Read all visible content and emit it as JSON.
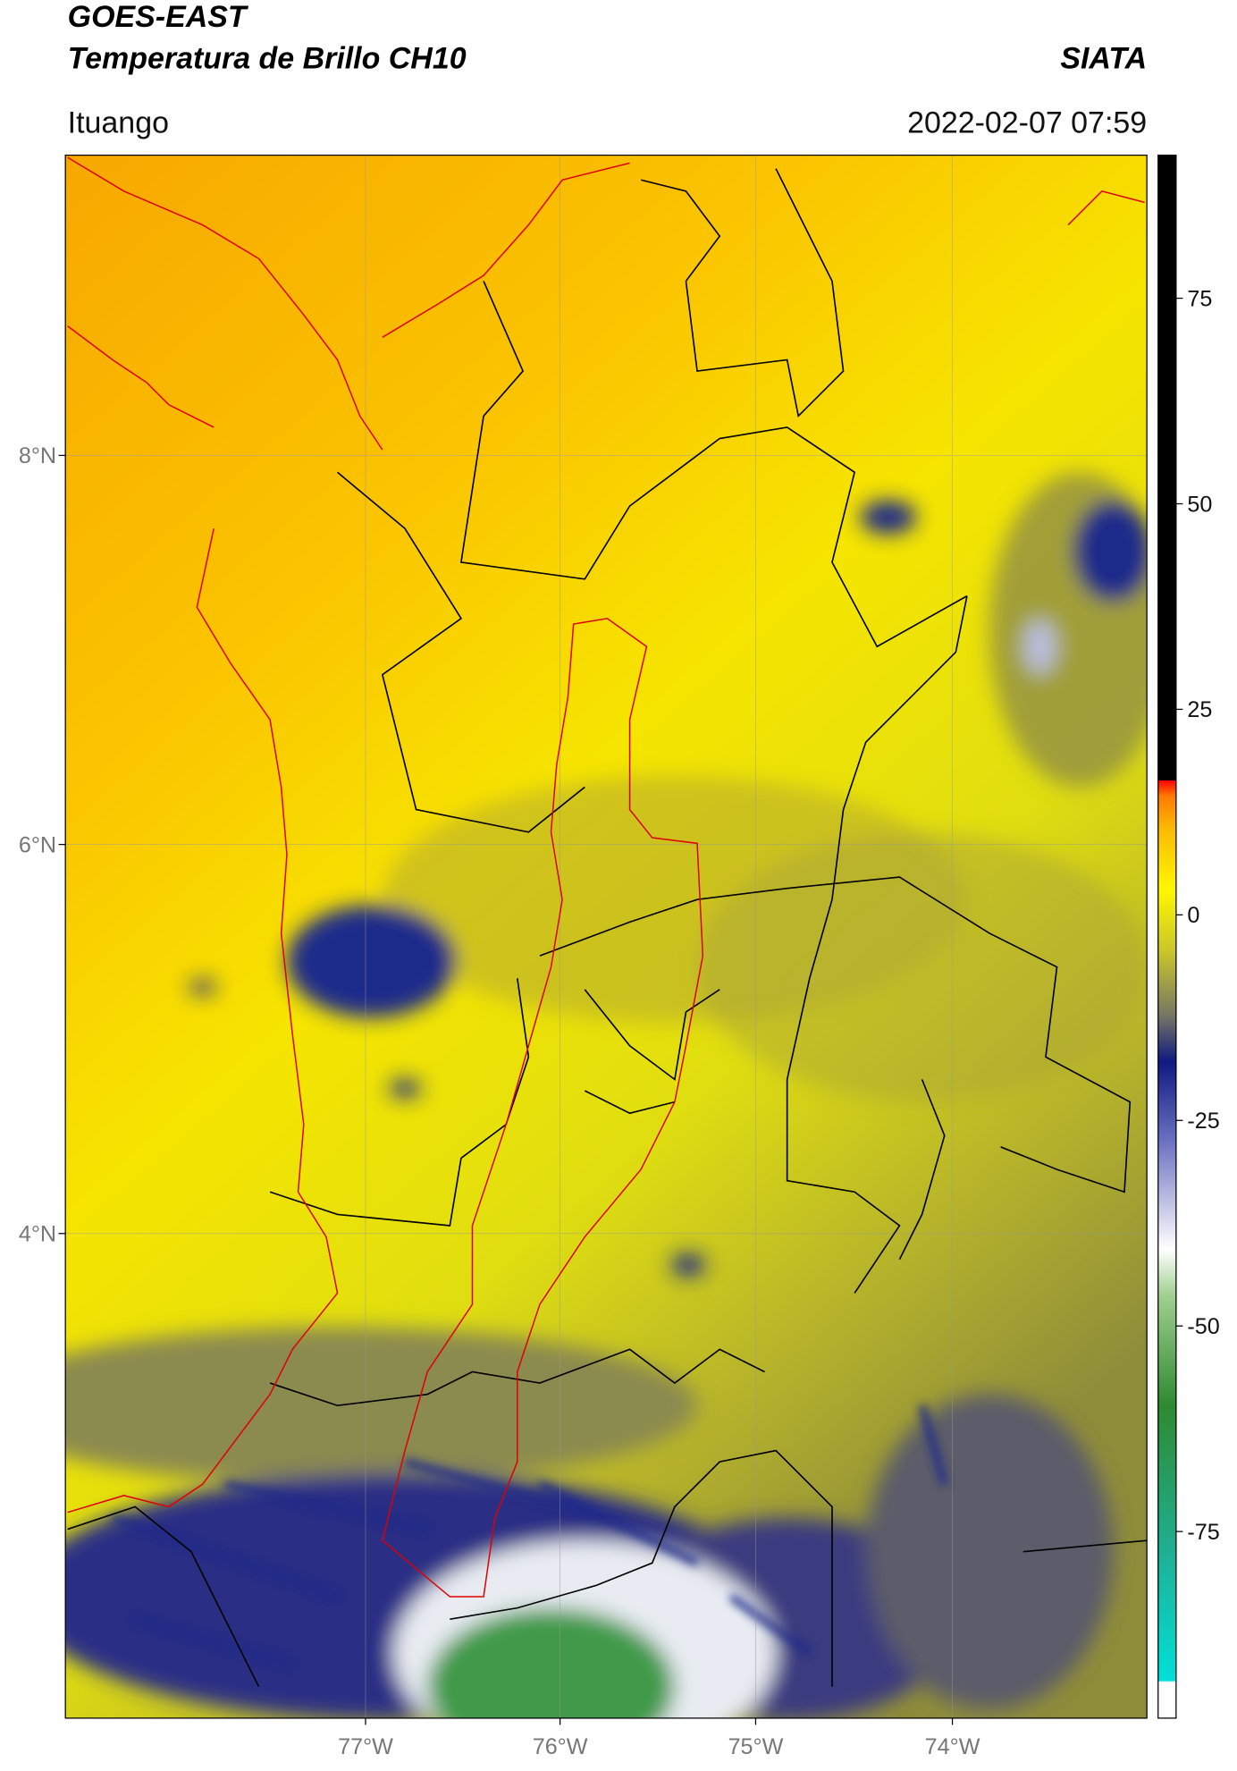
{
  "header": {
    "title": "GOES-EAST",
    "subtitle": "Temperatura de Brillo CH10",
    "brand": "SIATA",
    "location": "Ituango",
    "datetime": "2022-02-07 07:59"
  },
  "map": {
    "lat_labels": [
      "8°N",
      "6°N",
      "4°N"
    ],
    "lon_labels": [
      "77°W",
      "76°W",
      "75°W",
      "74°W"
    ]
  },
  "colorbar": {
    "lim": [
      -97.7,
      92.4
    ],
    "ticks": [
      75,
      50,
      25,
      0,
      -25,
      -50,
      -75
    ]
  }
}
